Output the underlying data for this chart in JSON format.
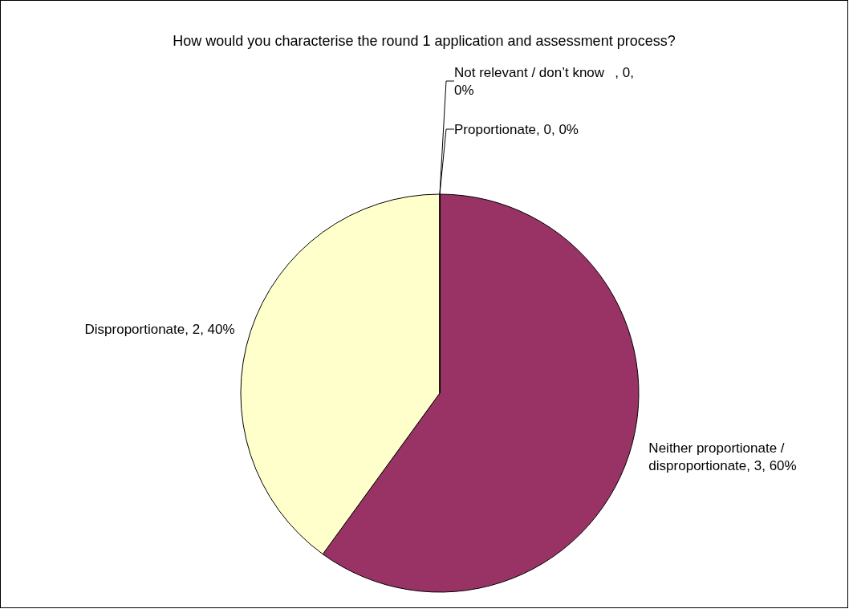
{
  "chart_data": {
    "type": "pie",
    "title": "How would you characterise the round 1 application and assessment process?",
    "categories": [
      "Proportionate",
      "Neither proportionate / disproportionate",
      "Disproportionate",
      "Not relevant / don’t know"
    ],
    "values": [
      0,
      3,
      2,
      0
    ],
    "colors": [
      "#9999ff",
      "#993366",
      "#ffffcc",
      "#ccffff"
    ],
    "value_labels": [
      ", 0, 0%",
      ", 3, 60%",
      ", 2, 40%",
      ", 0, 0%"
    ],
    "legend": false
  }
}
